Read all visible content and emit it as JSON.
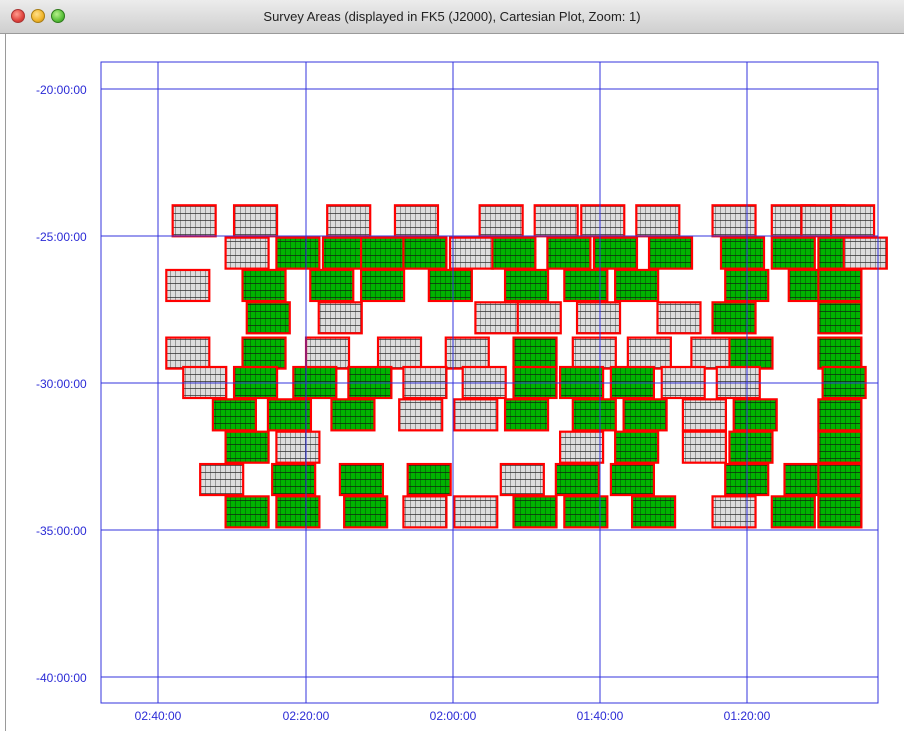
{
  "window": {
    "title": "Survey Areas (displayed in FK5 (J2000), Cartesian Plot, Zoom: 1)"
  },
  "colors": {
    "grid": "#3333dd",
    "label": "#2b2bd6",
    "border": "#ff0000",
    "field_green": "#00b400",
    "field_gray": "#dddddd"
  },
  "axes": {
    "y_labels": [
      "-20:00:00",
      "-25:00:00",
      "-30:00:00",
      "-35:00:00",
      "-40:00:00"
    ],
    "x_labels": [
      "02:40:00",
      "02:20:00",
      "02:00:00",
      "01:40:00",
      "01:20:00"
    ]
  },
  "chart_data": {
    "type": "scatter",
    "xlabel": "",
    "ylabel": "",
    "x_ticks": [
      "02:40:00",
      "02:20:00",
      "02:00:00",
      "01:40:00",
      "01:20:00"
    ],
    "y_ticks": [
      "-20:00:00",
      "-25:00:00",
      "-30:00:00",
      "-35:00:00",
      "-40:00:00"
    ],
    "xlim_deg": [
      39.25,
      20.9
    ],
    "ylim_deg": [
      -19.1,
      -40.9
    ],
    "grid": true,
    "fields": [
      {
        "ra": 37.05,
        "dec": -24.5,
        "s": "g"
      },
      {
        "ra": 35.6,
        "dec": -24.5,
        "s": "g"
      },
      {
        "ra": 33.4,
        "dec": -24.5,
        "s": "g"
      },
      {
        "ra": 31.8,
        "dec": -24.5,
        "s": "g"
      },
      {
        "ra": 29.8,
        "dec": -24.5,
        "s": "g"
      },
      {
        "ra": 28.5,
        "dec": -24.5,
        "s": "g"
      },
      {
        "ra": 27.4,
        "dec": -24.5,
        "s": "g"
      },
      {
        "ra": 26.1,
        "dec": -24.5,
        "s": "g"
      },
      {
        "ra": 24.3,
        "dec": -24.5,
        "s": "g"
      },
      {
        "ra": 22.9,
        "dec": -24.5,
        "s": "g"
      },
      {
        "ra": 22.2,
        "dec": -24.5,
        "s": "g"
      },
      {
        "ra": 21.5,
        "dec": -24.5,
        "s": "g"
      },
      {
        "ra": 35.8,
        "dec": -25.6,
        "s": "g"
      },
      {
        "ra": 34.6,
        "dec": -25.6,
        "s": "G"
      },
      {
        "ra": 33.5,
        "dec": -25.6,
        "s": "G"
      },
      {
        "ra": 32.6,
        "dec": -25.6,
        "s": "G"
      },
      {
        "ra": 31.6,
        "dec": -25.6,
        "s": "G"
      },
      {
        "ra": 30.5,
        "dec": -25.6,
        "s": "g"
      },
      {
        "ra": 29.5,
        "dec": -25.6,
        "s": "G"
      },
      {
        "ra": 28.2,
        "dec": -25.6,
        "s": "G"
      },
      {
        "ra": 27.1,
        "dec": -25.6,
        "s": "G"
      },
      {
        "ra": 25.8,
        "dec": -25.6,
        "s": "G"
      },
      {
        "ra": 24.1,
        "dec": -25.6,
        "s": "G"
      },
      {
        "ra": 22.9,
        "dec": -25.6,
        "s": "G"
      },
      {
        "ra": 21.8,
        "dec": -25.6,
        "s": "G"
      },
      {
        "ra": 21.2,
        "dec": -25.6,
        "s": "g"
      },
      {
        "ra": 37.2,
        "dec": -26.7,
        "s": "g"
      },
      {
        "ra": 35.4,
        "dec": -26.7,
        "s": "G"
      },
      {
        "ra": 33.8,
        "dec": -26.7,
        "s": "G"
      },
      {
        "ra": 32.6,
        "dec": -26.7,
        "s": "G"
      },
      {
        "ra": 31.0,
        "dec": -26.7,
        "s": "G"
      },
      {
        "ra": 29.2,
        "dec": -26.7,
        "s": "G"
      },
      {
        "ra": 27.8,
        "dec": -26.7,
        "s": "G"
      },
      {
        "ra": 26.6,
        "dec": -26.7,
        "s": "G"
      },
      {
        "ra": 24.0,
        "dec": -26.7,
        "s": "G"
      },
      {
        "ra": 22.5,
        "dec": -26.7,
        "s": "G"
      },
      {
        "ra": 21.8,
        "dec": -26.7,
        "s": "G"
      },
      {
        "ra": 35.3,
        "dec": -27.8,
        "s": "G"
      },
      {
        "ra": 33.6,
        "dec": -27.8,
        "s": "g"
      },
      {
        "ra": 29.9,
        "dec": -27.8,
        "s": "g"
      },
      {
        "ra": 28.9,
        "dec": -27.8,
        "s": "g"
      },
      {
        "ra": 27.5,
        "dec": -27.8,
        "s": "g"
      },
      {
        "ra": 25.6,
        "dec": -27.8,
        "s": "g"
      },
      {
        "ra": 24.3,
        "dec": -27.8,
        "s": "G"
      },
      {
        "ra": 21.8,
        "dec": -27.8,
        "s": "G"
      },
      {
        "ra": 37.2,
        "dec": -29.0,
        "s": "g"
      },
      {
        "ra": 35.4,
        "dec": -29.0,
        "s": "G"
      },
      {
        "ra": 33.9,
        "dec": -29.0,
        "s": "g"
      },
      {
        "ra": 32.2,
        "dec": -29.0,
        "s": "g"
      },
      {
        "ra": 30.6,
        "dec": -29.0,
        "s": "g"
      },
      {
        "ra": 29.0,
        "dec": -29.0,
        "s": "G"
      },
      {
        "ra": 27.6,
        "dec": -29.0,
        "s": "g"
      },
      {
        "ra": 26.3,
        "dec": -29.0,
        "s": "g"
      },
      {
        "ra": 24.8,
        "dec": -29.0,
        "s": "g"
      },
      {
        "ra": 23.9,
        "dec": -29.0,
        "s": "G"
      },
      {
        "ra": 21.8,
        "dec": -29.0,
        "s": "G"
      },
      {
        "ra": 36.8,
        "dec": -30.0,
        "s": "g"
      },
      {
        "ra": 35.6,
        "dec": -30.0,
        "s": "G"
      },
      {
        "ra": 34.2,
        "dec": -30.0,
        "s": "G"
      },
      {
        "ra": 32.9,
        "dec": -30.0,
        "s": "G"
      },
      {
        "ra": 31.6,
        "dec": -30.0,
        "s": "g"
      },
      {
        "ra": 30.2,
        "dec": -30.0,
        "s": "g"
      },
      {
        "ra": 29.0,
        "dec": -30.0,
        "s": "G"
      },
      {
        "ra": 27.9,
        "dec": -30.0,
        "s": "G"
      },
      {
        "ra": 26.7,
        "dec": -30.0,
        "s": "G"
      },
      {
        "ra": 25.5,
        "dec": -30.0,
        "s": "g"
      },
      {
        "ra": 24.2,
        "dec": -30.0,
        "s": "g"
      },
      {
        "ra": 21.7,
        "dec": -30.0,
        "s": "G"
      },
      {
        "ra": 36.1,
        "dec": -31.1,
        "s": "G"
      },
      {
        "ra": 34.8,
        "dec": -31.1,
        "s": "G"
      },
      {
        "ra": 33.3,
        "dec": -31.1,
        "s": "G"
      },
      {
        "ra": 31.7,
        "dec": -31.1,
        "s": "g"
      },
      {
        "ra": 30.4,
        "dec": -31.1,
        "s": "g"
      },
      {
        "ra": 29.2,
        "dec": -31.1,
        "s": "G"
      },
      {
        "ra": 27.6,
        "dec": -31.1,
        "s": "G"
      },
      {
        "ra": 26.4,
        "dec": -31.1,
        "s": "G"
      },
      {
        "ra": 25.0,
        "dec": -31.1,
        "s": "g"
      },
      {
        "ra": 23.8,
        "dec": -31.1,
        "s": "G"
      },
      {
        "ra": 21.8,
        "dec": -31.1,
        "s": "G"
      },
      {
        "ra": 35.8,
        "dec": -32.2,
        "s": "G"
      },
      {
        "ra": 34.6,
        "dec": -32.2,
        "s": "g"
      },
      {
        "ra": 27.9,
        "dec": -32.2,
        "s": "g"
      },
      {
        "ra": 26.6,
        "dec": -32.2,
        "s": "G"
      },
      {
        "ra": 25.0,
        "dec": -32.2,
        "s": "g"
      },
      {
        "ra": 23.9,
        "dec": -32.2,
        "s": "G"
      },
      {
        "ra": 21.8,
        "dec": -32.2,
        "s": "G"
      },
      {
        "ra": 36.4,
        "dec": -33.3,
        "s": "g"
      },
      {
        "ra": 34.7,
        "dec": -33.3,
        "s": "G"
      },
      {
        "ra": 33.1,
        "dec": -33.3,
        "s": "G"
      },
      {
        "ra": 31.5,
        "dec": -33.3,
        "s": "G"
      },
      {
        "ra": 29.3,
        "dec": -33.3,
        "s": "g"
      },
      {
        "ra": 28.0,
        "dec": -33.3,
        "s": "G"
      },
      {
        "ra": 26.7,
        "dec": -33.3,
        "s": "G"
      },
      {
        "ra": 24.0,
        "dec": -33.3,
        "s": "G"
      },
      {
        "ra": 22.6,
        "dec": -33.3,
        "s": "G"
      },
      {
        "ra": 21.8,
        "dec": -33.3,
        "s": "G"
      },
      {
        "ra": 35.8,
        "dec": -34.4,
        "s": "G"
      },
      {
        "ra": 34.6,
        "dec": -34.4,
        "s": "G"
      },
      {
        "ra": 33.0,
        "dec": -34.4,
        "s": "G"
      },
      {
        "ra": 31.6,
        "dec": -34.4,
        "s": "g"
      },
      {
        "ra": 30.4,
        "dec": -34.4,
        "s": "g"
      },
      {
        "ra": 29.0,
        "dec": -34.4,
        "s": "G"
      },
      {
        "ra": 27.8,
        "dec": -34.4,
        "s": "G"
      },
      {
        "ra": 26.2,
        "dec": -34.4,
        "s": "G"
      },
      {
        "ra": 24.3,
        "dec": -34.4,
        "s": "g"
      },
      {
        "ra": 22.9,
        "dec": -34.4,
        "s": "G"
      },
      {
        "ra": 21.8,
        "dec": -34.4,
        "s": "G"
      }
    ]
  }
}
